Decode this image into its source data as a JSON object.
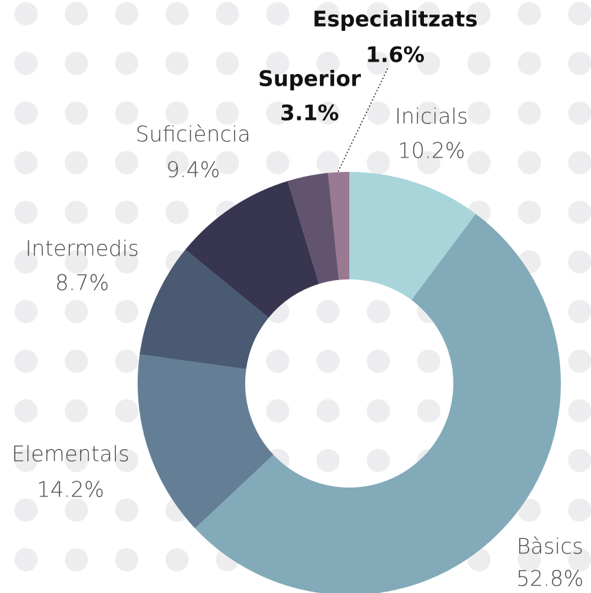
{
  "chart_data": {
    "type": "donut",
    "categories": [
      "Inicials",
      "Bàsics",
      "Elementals",
      "Intermedis",
      "Suficiència",
      "Superior",
      "Especialitzats"
    ],
    "values": [
      10.2,
      52.8,
      14.2,
      8.7,
      9.4,
      3.1,
      1.6
    ],
    "value_labels": [
      "10.2%",
      "52.8%",
      "14.2%",
      "8.7%",
      "9.4%",
      "3.1%",
      "1.6%"
    ],
    "colors": [
      "#a8d5da",
      "#82aab8",
      "#647f95",
      "#4a5a72",
      "#37354f",
      "#62536e",
      "#9a7a90"
    ]
  }
}
